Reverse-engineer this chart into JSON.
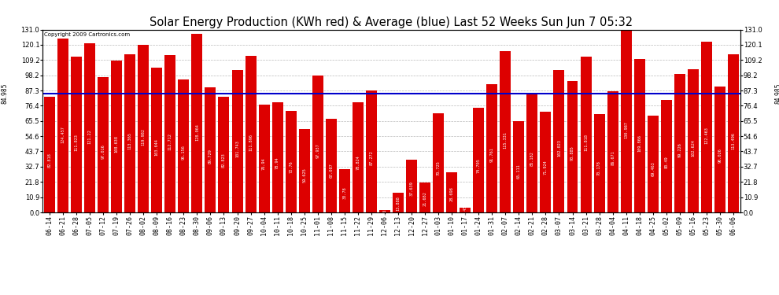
{
  "title": "Solar Energy Production (KWh red) & Average (blue) Last 52 Weeks Sun Jun 7 05:32",
  "copyright": "Copyright 2009 Cartronics.com",
  "average": 84.985,
  "bar_color": "#dd0000",
  "avg_line_color": "#0000cc",
  "background_color": "#ffffff",
  "plot_bg_color": "#ffffff",
  "grid_color": "#bbbbbb",
  "categories": [
    "06-14",
    "06-21",
    "06-28",
    "07-05",
    "07-12",
    "07-19",
    "07-26",
    "08-02",
    "08-09",
    "08-16",
    "08-23",
    "08-30",
    "09-06",
    "09-13",
    "09-20",
    "09-27",
    "10-04",
    "10-11",
    "10-18",
    "10-25",
    "11-01",
    "11-08",
    "11-15",
    "11-22",
    "11-29",
    "12-06",
    "12-13",
    "12-20",
    "12-27",
    "01-03",
    "01-10",
    "01-17",
    "01-24",
    "01-31",
    "02-07",
    "02-14",
    "02-21",
    "02-28",
    "03-07",
    "03-14",
    "03-21",
    "03-28",
    "04-04",
    "04-11",
    "04-18",
    "04-25",
    "05-02",
    "05-09",
    "05-16",
    "05-23",
    "05-30",
    "06-06"
  ],
  "values": [
    82.818,
    124.457,
    111.823,
    121.22,
    97.016,
    108.638,
    113.365,
    119.982,
    103.644,
    112.712,
    95.156,
    128.064,
    89.729,
    82.823,
    101.743,
    111.896,
    76.94,
    78.94,
    72.76,
    59.625,
    97.937,
    67.087,
    30.78,
    78.824,
    87.272,
    1.65,
    13.888,
    37.639,
    21.682,
    70.725,
    28.698,
    3.45,
    74.705,
    91.761,
    115.331,
    65.111,
    85.182,
    71.924,
    102.023,
    93.885,
    111.818,
    70.178,
    86.671,
    130.987,
    109.866,
    69.463,
    80.49,
    99.226,
    102.624,
    122.463,
    90.026,
    113.496
  ],
  "ylim": [
    0,
    131.0
  ],
  "yticks": [
    0.0,
    10.9,
    21.8,
    32.7,
    43.7,
    54.6,
    65.5,
    76.4,
    87.3,
    98.2,
    109.2,
    120.1,
    131.0
  ],
  "title_fontsize": 10.5,
  "tick_fontsize": 6,
  "label_fontsize": 5,
  "avg_label": "84.985",
  "figwidth": 9.9,
  "figheight": 3.75,
  "dpi": 100
}
